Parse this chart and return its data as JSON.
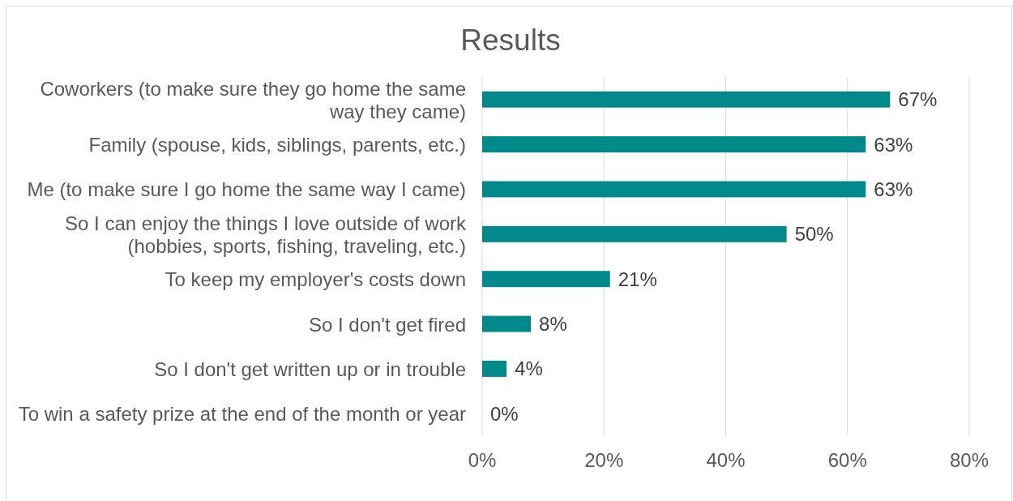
{
  "chart_data": {
    "type": "bar",
    "orientation": "horizontal",
    "title": "Results",
    "categories": [
      "Coworkers (to make sure they go home the same way they came)",
      "Family (spouse, kids, siblings, parents, etc.)",
      "Me (to make sure I go home the same way I came)",
      "So I can enjoy the things I love outside of work (hobbies, sports, fishing, traveling, etc.)",
      "To keep my employer's costs down",
      "So I don't get fired",
      "So I don't get written up or in trouble",
      "To win a safety prize at the end of the month or year"
    ],
    "values": [
      67,
      63,
      63,
      50,
      21,
      8,
      4,
      0
    ],
    "value_labels": [
      "67%",
      "63%",
      "63%",
      "50%",
      "21%",
      "8%",
      "4%",
      "0%"
    ],
    "color": "#00888a",
    "xlim": [
      0,
      80
    ],
    "xticks": [
      {
        "value": 0,
        "label": "0%"
      },
      {
        "value": 20,
        "label": "20%"
      },
      {
        "value": 40,
        "label": "40%"
      },
      {
        "value": 60,
        "label": "60%"
      },
      {
        "value": 80,
        "label": "80%"
      }
    ],
    "grid": "x"
  }
}
